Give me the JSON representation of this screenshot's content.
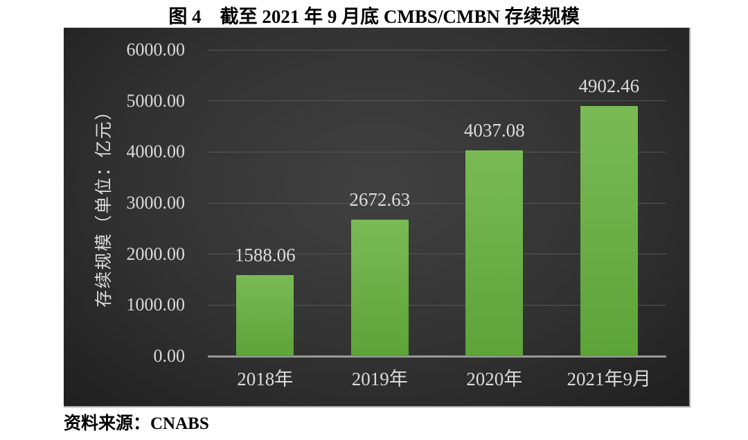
{
  "figure": {
    "title": "图 4　截至 2021 年 9 月底 CMBS/CMBN 存续规模",
    "source_note": "资料来源：CNABS"
  },
  "chart_data": {
    "type": "bar",
    "title": "截至 2021 年 9 月底 CMBS/CMBN 存续规模",
    "categories": [
      "2018年",
      "2019年",
      "2020年",
      "2021年9月"
    ],
    "values": [
      1588.06,
      2672.63,
      4037.08,
      4902.46
    ],
    "value_labels": [
      "1588.06",
      "2672.63",
      "4037.08",
      "4902.46"
    ],
    "ylabel": "存续规模（单位：亿元）",
    "xlabel": "",
    "ylim": [
      0,
      6000
    ],
    "ytick_interval": 1000,
    "ytick_decimals": 2,
    "grid": true,
    "legend": false,
    "colors": {
      "bar_top": "#7aba55",
      "bar_bottom": "#5ca338",
      "plot_bg_center": "#414141",
      "plot_bg_mid": "#323232",
      "plot_bg_edge": "#1f1f1f",
      "gridline": "#565656",
      "axis_line": "#9a9a9a",
      "chart_text": "#dcdcdc",
      "title_text": "#000000"
    }
  }
}
